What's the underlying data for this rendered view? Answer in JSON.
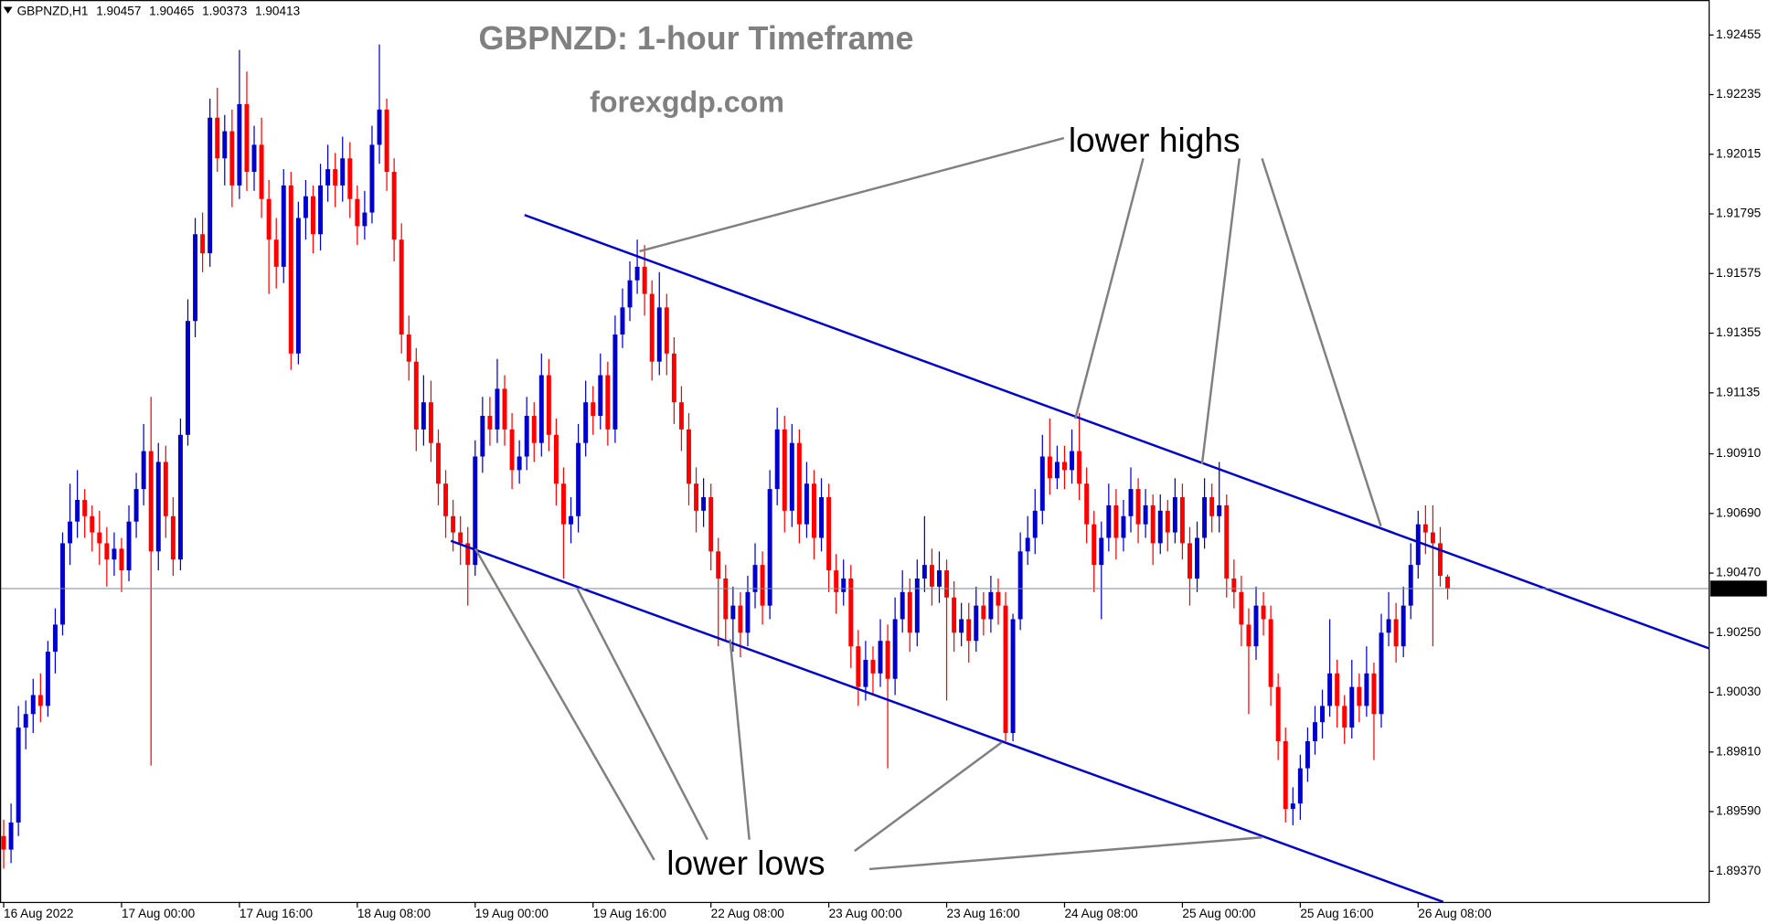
{
  "chart_data": {
    "type": "candlestick",
    "symbol": "GBPNZD,H1",
    "title": "GBPNZD: 1-hour Timeframe",
    "subtitle": "forexgdp.com",
    "annotations": [
      "lower highs",
      "lower lows"
    ],
    "up_color": "#0000cd",
    "down_color": "#ff0000",
    "trendline_color": "#0000cd",
    "xlim": [
      -0.5,
      231.5
    ],
    "ylim": [
      1.89257,
      1.92584
    ],
    "xticks": [
      {
        "value": 0,
        "label": "16 Aug 2022"
      },
      {
        "value": 16,
        "label": "17 Aug 00:00"
      },
      {
        "value": 32,
        "label": "17 Aug 16:00"
      },
      {
        "value": 48,
        "label": "18 Aug 08:00"
      },
      {
        "value": 64,
        "label": "19 Aug 00:00"
      },
      {
        "value": 80,
        "label": "19 Aug 16:00"
      },
      {
        "value": 96,
        "label": "22 Aug 08:00"
      },
      {
        "value": 112,
        "label": "23 Aug 00:00"
      },
      {
        "value": 128,
        "label": "23 Aug 16:00"
      },
      {
        "value": 144,
        "label": "24 Aug 08:00"
      },
      {
        "value": 160,
        "label": "25 Aug 00:00"
      },
      {
        "value": 176,
        "label": "25 Aug 16:00"
      },
      {
        "value": 192,
        "label": "26 Aug 08:00"
      }
    ],
    "yticks": [
      1.92455,
      1.92235,
      1.92015,
      1.91795,
      1.91575,
      1.91355,
      1.91135,
      {
        "value": 1.9091,
        "label": "1.90910"
      },
      {
        "value": 1.9069,
        "label": "1.90690"
      },
      {
        "value": 1.9047,
        "label": "1.90470"
      },
      {
        "value": 1.9025,
        "label": "1.90250"
      },
      {
        "value": 1.9003,
        "label": "1.90030"
      },
      {
        "value": 1.8981,
        "label": "1.89810"
      },
      {
        "value": 1.8959,
        "label": "1.89590"
      },
      {
        "value": 1.8937,
        "label": "1.89370"
      }
    ],
    "trendlines": [
      {
        "x": [
          70.7,
          231.5
        ],
        "y": [
          1.91791,
          1.90192
        ]
      },
      {
        "x": [
          60.7,
          195.4
        ],
        "y": [
          1.90589,
          1.89257
        ]
      }
    ],
    "candles": [
      [
        1.895,
        1.8956,
        1.8938,
        1.8945
      ],
      [
        1.8945,
        1.8962,
        1.894,
        1.8955
      ],
      [
        1.8955,
        1.8998,
        1.895,
        1.899
      ],
      [
        1.899,
        1.9,
        1.8982,
        1.8995
      ],
      [
        1.8995,
        1.9008,
        1.8988,
        1.9002
      ],
      [
        1.9002,
        1.901,
        1.8992,
        1.8998
      ],
      [
        1.8998,
        1.9022,
        1.8994,
        1.9018
      ],
      [
        1.9018,
        1.9034,
        1.901,
        1.9028
      ],
      [
        1.9028,
        1.9062,
        1.9024,
        1.9058
      ],
      [
        1.9058,
        1.908,
        1.905,
        1.9066
      ],
      [
        1.9066,
        1.9085,
        1.906,
        1.9074
      ],
      [
        1.9074,
        1.9078,
        1.906,
        1.9068
      ],
      [
        1.9068,
        1.9072,
        1.9055,
        1.9062
      ],
      [
        1.9062,
        1.907,
        1.905,
        1.9058
      ],
      [
        1.9058,
        1.9064,
        1.9042,
        1.9052
      ],
      [
        1.9052,
        1.9062,
        1.9046,
        1.9056
      ],
      [
        1.9056,
        1.906,
        1.904,
        1.9048
      ],
      [
        1.9048,
        1.9072,
        1.9044,
        1.9066
      ],
      [
        1.9066,
        1.9084,
        1.906,
        1.9078
      ],
      [
        1.9078,
        1.9102,
        1.9072,
        1.9092
      ],
      [
        1.9092,
        1.9112,
        1.8976,
        1.9055
      ],
      [
        1.9055,
        1.9095,
        1.9048,
        1.9088
      ],
      [
        1.9088,
        1.9094,
        1.906,
        1.9068
      ],
      [
        1.9068,
        1.9075,
        1.9046,
        1.9052
      ],
      [
        1.9052,
        1.9104,
        1.9048,
        1.9098
      ],
      [
        1.9098,
        1.9148,
        1.9094,
        1.914
      ],
      [
        1.914,
        1.9178,
        1.9134,
        1.9172
      ],
      [
        1.9172,
        1.918,
        1.9158,
        1.9165
      ],
      [
        1.9165,
        1.9222,
        1.916,
        1.9215
      ],
      [
        1.9215,
        1.9226,
        1.9195,
        1.92
      ],
      [
        1.92,
        1.9216,
        1.919,
        1.921
      ],
      [
        1.921,
        1.9218,
        1.9182,
        1.919
      ],
      [
        1.919,
        1.924,
        1.9185,
        1.922
      ],
      [
        1.922,
        1.9232,
        1.9188,
        1.9195
      ],
      [
        1.9195,
        1.9212,
        1.9188,
        1.9205
      ],
      [
        1.9205,
        1.9215,
        1.9178,
        1.9185
      ],
      [
        1.9185,
        1.9192,
        1.915,
        1.917
      ],
      [
        1.917,
        1.9178,
        1.9152,
        1.916
      ],
      [
        1.916,
        1.9196,
        1.9154,
        1.919
      ],
      [
        1.919,
        1.9195,
        1.9122,
        1.9128
      ],
      [
        1.9128,
        1.9184,
        1.9124,
        1.9178
      ],
      [
        1.9178,
        1.9192,
        1.917,
        1.9186
      ],
      [
        1.9186,
        1.919,
        1.9165,
        1.9172
      ],
      [
        1.9172,
        1.9198,
        1.9166,
        1.919
      ],
      [
        1.919,
        1.9205,
        1.9184,
        1.9196
      ],
      [
        1.9196,
        1.9202,
        1.9182,
        1.919
      ],
      [
        1.919,
        1.9208,
        1.9184,
        1.92
      ],
      [
        1.92,
        1.9206,
        1.9178,
        1.9185
      ],
      [
        1.9185,
        1.919,
        1.9168,
        1.9175
      ],
      [
        1.9175,
        1.9188,
        1.917,
        1.918
      ],
      [
        1.918,
        1.9212,
        1.9176,
        1.9205
      ],
      [
        1.9205,
        1.9242,
        1.9198,
        1.9218
      ],
      [
        1.9218,
        1.9222,
        1.9188,
        1.9195
      ],
      [
        1.9195,
        1.92,
        1.9162,
        1.917
      ],
      [
        1.917,
        1.9176,
        1.9128,
        1.9135
      ],
      [
        1.9135,
        1.9142,
        1.9118,
        1.9125
      ],
      [
        1.9125,
        1.913,
        1.9092,
        1.91
      ],
      [
        1.91,
        1.912,
        1.9094,
        1.911
      ],
      [
        1.911,
        1.9118,
        1.9088,
        1.9095
      ],
      [
        1.9095,
        1.91,
        1.9072,
        1.908
      ],
      [
        1.908,
        1.9085,
        1.906,
        1.9068
      ],
      [
        1.9068,
        1.9074,
        1.9055,
        1.9062
      ],
      [
        1.9062,
        1.9068,
        1.905,
        1.9058
      ],
      [
        1.9058,
        1.9064,
        1.9035,
        1.905
      ],
      [
        1.905,
        1.9096,
        1.9046,
        1.909
      ],
      [
        1.909,
        1.9112,
        1.9084,
        1.9105
      ],
      [
        1.9105,
        1.9112,
        1.9094,
        1.91
      ],
      [
        1.91,
        1.9126,
        1.9095,
        1.9115
      ],
      [
        1.9115,
        1.912,
        1.9094,
        1.91
      ],
      [
        1.91,
        1.9106,
        1.9078,
        1.9085
      ],
      [
        1.9085,
        1.9096,
        1.908,
        1.909
      ],
      [
        1.909,
        1.9112,
        1.9085,
        1.9105
      ],
      [
        1.9105,
        1.911,
        1.9088,
        1.9095
      ],
      [
        1.9095,
        1.9128,
        1.909,
        1.912
      ],
      [
        1.912,
        1.9126,
        1.9092,
        1.9098
      ],
      [
        1.9098,
        1.9104,
        1.9072,
        1.908
      ],
      [
        1.908,
        1.9086,
        1.9045,
        1.9065
      ],
      [
        1.9065,
        1.9075,
        1.9058,
        1.9068
      ],
      [
        1.9068,
        1.9102,
        1.9062,
        1.9095
      ],
      [
        1.9095,
        1.9118,
        1.909,
        1.911
      ],
      [
        1.911,
        1.9116,
        1.9098,
        1.9105
      ],
      [
        1.9105,
        1.9128,
        1.91,
        1.912
      ],
      [
        1.912,
        1.9125,
        1.9094,
        1.91
      ],
      [
        1.91,
        1.9142,
        1.9095,
        1.9135
      ],
      [
        1.9135,
        1.9152,
        1.913,
        1.9145
      ],
      [
        1.9145,
        1.9162,
        1.914,
        1.9155
      ],
      [
        1.9155,
        1.917,
        1.915,
        1.916
      ],
      [
        1.916,
        1.9168,
        1.9142,
        1.915
      ],
      [
        1.915,
        1.9155,
        1.9118,
        1.9125
      ],
      [
        1.9125,
        1.9158,
        1.912,
        1.9145
      ],
      [
        1.9145,
        1.915,
        1.912,
        1.9128
      ],
      [
        1.9128,
        1.9134,
        1.9102,
        1.911
      ],
      [
        1.911,
        1.9116,
        1.9092,
        1.91
      ],
      [
        1.91,
        1.9106,
        1.9072,
        1.908
      ],
      [
        1.908,
        1.9086,
        1.9062,
        1.907
      ],
      [
        1.907,
        1.9082,
        1.9064,
        1.9075
      ],
      [
        1.9075,
        1.908,
        1.9048,
        1.9055
      ],
      [
        1.9055,
        1.906,
        1.902,
        1.9045
      ],
      [
        1.9045,
        1.905,
        1.9022,
        1.903
      ],
      [
        1.903,
        1.9042,
        1.9018,
        1.9035
      ],
      [
        1.9035,
        1.904,
        1.9016,
        1.9025
      ],
      [
        1.9025,
        1.9046,
        1.902,
        1.904
      ],
      [
        1.904,
        1.9058,
        1.9034,
        1.905
      ],
      [
        1.905,
        1.9055,
        1.9028,
        1.9035
      ],
      [
        1.9035,
        1.9085,
        1.903,
        1.9078
      ],
      [
        1.9078,
        1.9108,
        1.9072,
        1.91
      ],
      [
        1.91,
        1.9105,
        1.9062,
        1.907
      ],
      [
        1.907,
        1.9102,
        1.9064,
        1.9095
      ],
      [
        1.9095,
        1.91,
        1.9058,
        1.9065
      ],
      [
        1.9065,
        1.9088,
        1.906,
        1.908
      ],
      [
        1.908,
        1.9085,
        1.9052,
        1.906
      ],
      [
        1.906,
        1.9082,
        1.9055,
        1.9075
      ],
      [
        1.9075,
        1.908,
        1.904,
        1.9048
      ],
      [
        1.9048,
        1.9054,
        1.9032,
        1.904
      ],
      [
        1.904,
        1.9052,
        1.9035,
        1.9045
      ],
      [
        1.9045,
        1.905,
        1.9012,
        1.902
      ],
      [
        1.902,
        1.9026,
        1.8998,
        1.9005
      ],
      [
        1.9005,
        1.9022,
        1.9,
        1.9015
      ],
      [
        1.9015,
        1.902,
        1.9002,
        1.901
      ],
      [
        1.901,
        1.903,
        1.9005,
        1.9022
      ],
      [
        1.9022,
        1.9028,
        1.8975,
        1.9008
      ],
      [
        1.9008,
        1.9038,
        1.9002,
        1.903
      ],
      [
        1.903,
        1.9048,
        1.9025,
        1.904
      ],
      [
        1.904,
        1.9045,
        1.9018,
        1.9025
      ],
      [
        1.9025,
        1.9052,
        1.902,
        1.9045
      ],
      [
        1.9045,
        1.9068,
        1.904,
        1.905
      ],
      [
        1.905,
        1.9056,
        1.9035,
        1.9042
      ],
      [
        1.9042,
        1.9055,
        1.9036,
        1.9048
      ],
      [
        1.9048,
        1.9052,
        1.9,
        1.9038
      ],
      [
        1.9038,
        1.9044,
        1.9018,
        1.9025
      ],
      [
        1.9025,
        1.9036,
        1.902,
        1.903
      ],
      [
        1.903,
        1.9036,
        1.9014,
        1.9022
      ],
      [
        1.9022,
        1.9042,
        1.9018,
        1.9035
      ],
      [
        1.9035,
        1.904,
        1.9024,
        1.903
      ],
      [
        1.903,
        1.9046,
        1.9025,
        1.904
      ],
      [
        1.904,
        1.9045,
        1.9028,
        1.9035
      ],
      [
        1.9035,
        1.904,
        1.8985,
        1.8988
      ],
      [
        1.8988,
        1.9032,
        1.8985,
        1.903
      ],
      [
        1.903,
        1.9062,
        1.9026,
        1.9055
      ],
      [
        1.9055,
        1.9068,
        1.905,
        1.906
      ],
      [
        1.906,
        1.9078,
        1.9054,
        1.907
      ],
      [
        1.907,
        1.9098,
        1.9065,
        1.909
      ],
      [
        1.909,
        1.9104,
        1.9076,
        1.9082
      ],
      [
        1.9082,
        1.9094,
        1.9078,
        1.9088
      ],
      [
        1.9088,
        1.9094,
        1.9078,
        1.9085
      ],
      [
        1.9085,
        1.91,
        1.908,
        1.9092
      ],
      [
        1.9092,
        1.9106,
        1.9074,
        1.908
      ],
      [
        1.908,
        1.9086,
        1.9058,
        1.9065
      ],
      [
        1.9065,
        1.907,
        1.904,
        1.905
      ],
      [
        1.905,
        1.9066,
        1.903,
        1.906
      ],
      [
        1.906,
        1.908,
        1.9055,
        1.9072
      ],
      [
        1.9072,
        1.9078,
        1.9052,
        1.906
      ],
      [
        1.906,
        1.9074,
        1.9055,
        1.9068
      ],
      [
        1.9068,
        1.9086,
        1.9062,
        1.9078
      ],
      [
        1.9078,
        1.9082,
        1.9058,
        1.9065
      ],
      [
        1.9065,
        1.9078,
        1.906,
        1.9072
      ],
      [
        1.9072,
        1.9076,
        1.905,
        1.9058
      ],
      [
        1.9058,
        1.9076,
        1.9054,
        1.907
      ],
      [
        1.907,
        1.9074,
        1.9055,
        1.9062
      ],
      [
        1.9062,
        1.9082,
        1.9058,
        1.9075
      ],
      [
        1.9075,
        1.908,
        1.9052,
        1.9058
      ],
      [
        1.9058,
        1.9064,
        1.9035,
        1.9045
      ],
      [
        1.9045,
        1.9066,
        1.904,
        1.906
      ],
      [
        1.906,
        1.9082,
        1.9056,
        1.9075
      ],
      [
        1.9075,
        1.908,
        1.9062,
        1.9068
      ],
      [
        1.9068,
        1.9088,
        1.9062,
        1.9072
      ],
      [
        1.9072,
        1.9076,
        1.9038,
        1.9045
      ],
      [
        1.9045,
        1.9052,
        1.9034,
        1.904
      ],
      [
        1.904,
        1.9046,
        1.902,
        1.9028
      ],
      [
        1.9028,
        1.9034,
        1.8995,
        1.902
      ],
      [
        1.902,
        1.9042,
        1.9015,
        1.9035
      ],
      [
        1.9035,
        1.904,
        1.9024,
        1.903
      ],
      [
        1.903,
        1.9035,
        1.8998,
        1.9005
      ],
      [
        1.9005,
        1.901,
        1.8978,
        1.8985
      ],
      [
        1.8985,
        1.899,
        1.8955,
        1.896
      ],
      [
        1.896,
        1.8968,
        1.8954,
        1.8962
      ],
      [
        1.8962,
        1.898,
        1.8956,
        1.8975
      ],
      [
        1.8975,
        1.899,
        1.897,
        1.8985
      ],
      [
        1.8985,
        1.8998,
        1.898,
        1.8992
      ],
      [
        1.8992,
        1.9004,
        1.8986,
        1.8998
      ],
      [
        1.8998,
        1.903,
        1.8994,
        1.901
      ],
      [
        1.901,
        1.9015,
        1.899,
        1.8998
      ],
      [
        1.8998,
        1.9002,
        1.8984,
        1.899
      ],
      [
        1.899,
        1.9015,
        1.8986,
        1.9005
      ],
      [
        1.9005,
        1.901,
        1.8992,
        1.8998
      ],
      [
        1.8998,
        1.902,
        1.8994,
        1.901
      ],
      [
        1.901,
        1.9014,
        1.8978,
        1.8995
      ],
      [
        1.8995,
        1.9032,
        1.899,
        1.9025
      ],
      [
        1.9025,
        1.904,
        1.902,
        1.903
      ],
      [
        1.903,
        1.9036,
        1.9014,
        1.902
      ],
      [
        1.902,
        1.9042,
        1.9016,
        1.9035
      ],
      [
        1.9035,
        1.9058,
        1.903,
        1.905
      ],
      [
        1.905,
        1.907,
        1.9045,
        1.9065
      ],
      [
        1.9065,
        1.9072,
        1.9054,
        1.9062
      ],
      [
        1.9062,
        1.9072,
        1.902,
        1.9058
      ],
      [
        1.9058,
        1.9064,
        1.9042,
        1.9046
      ],
      [
        1.90457,
        1.90465,
        1.90373,
        1.90413
      ]
    ]
  }
}
